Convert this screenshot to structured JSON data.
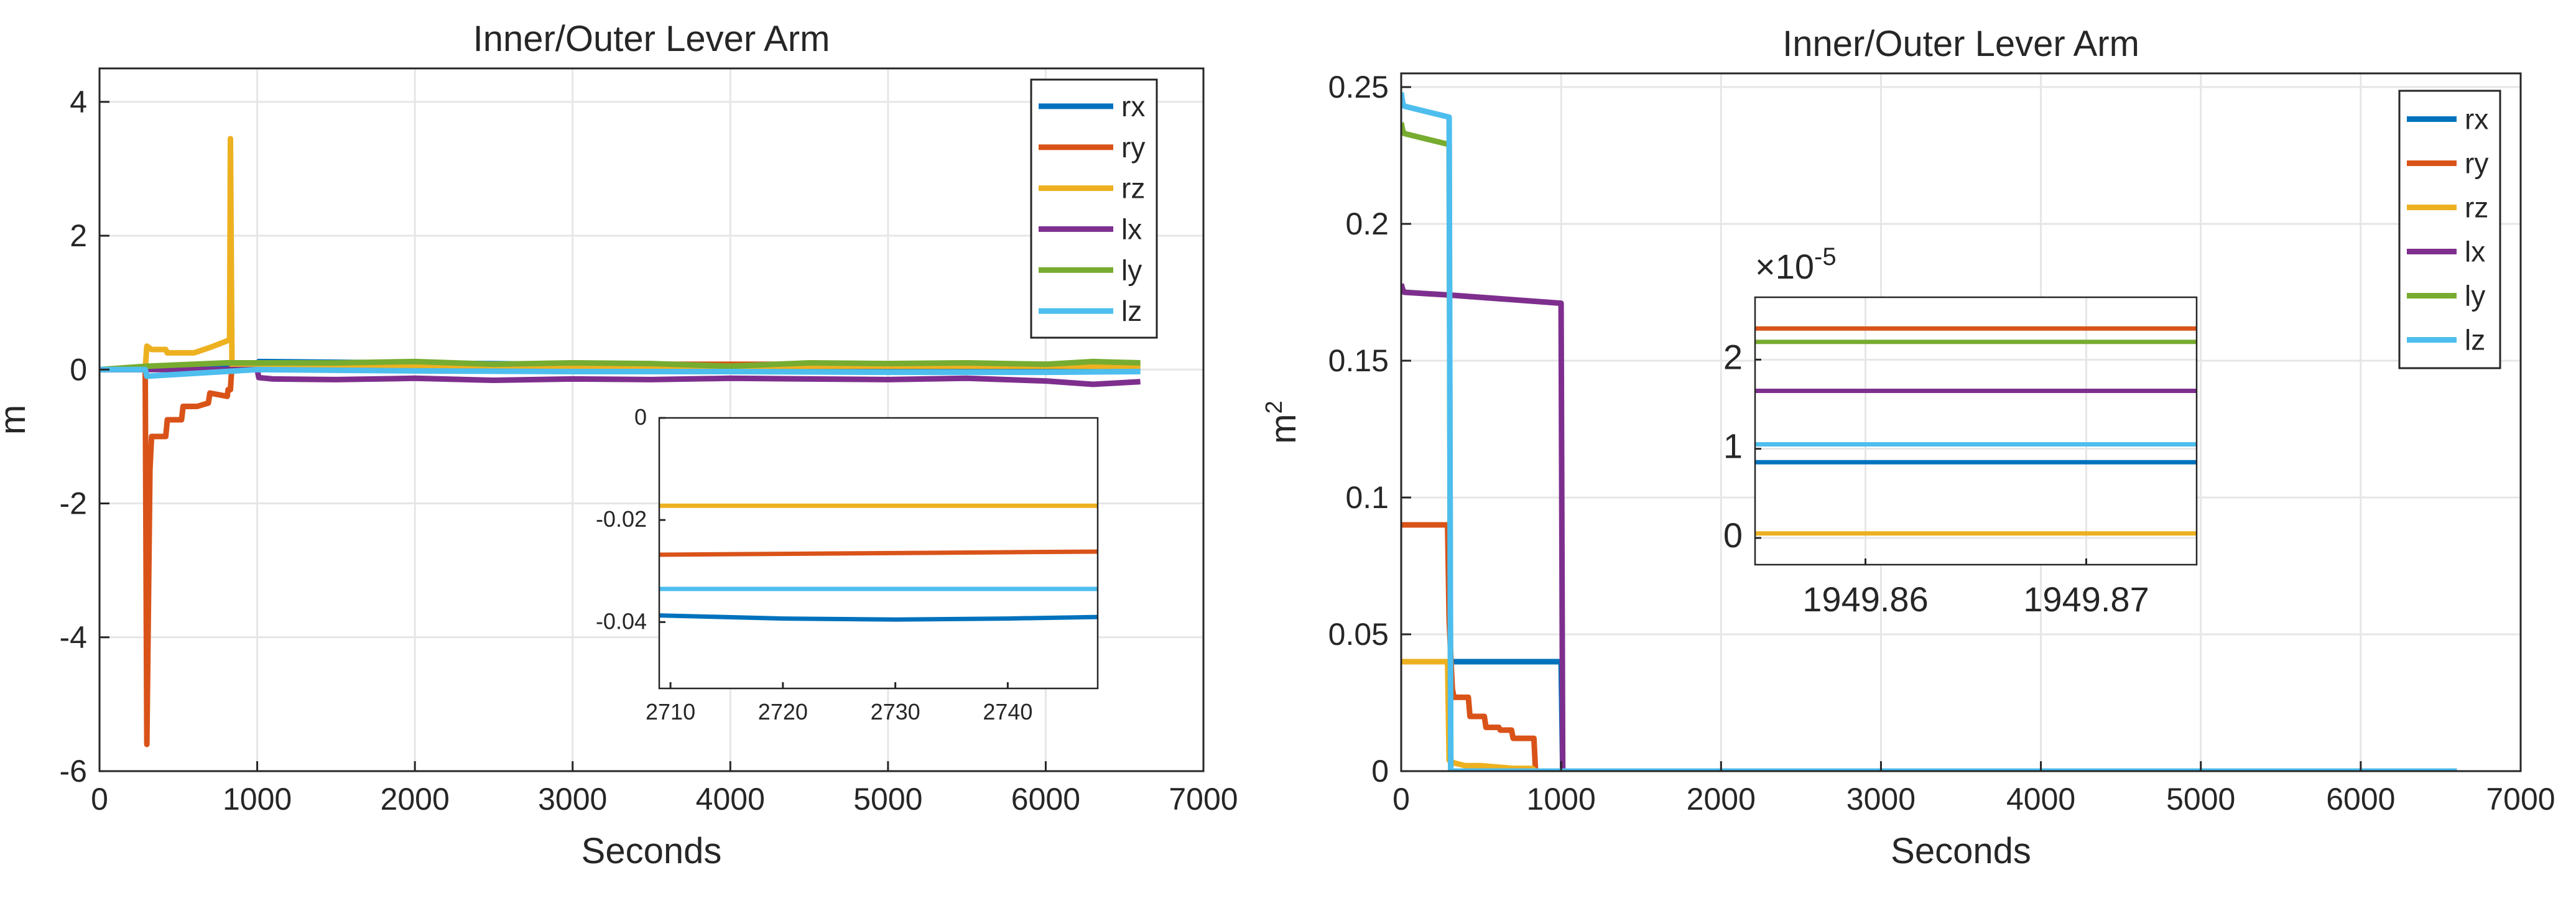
{
  "chart_data": [
    {
      "type": "line",
      "title": "Inner/Outer Lever Arm",
      "xlabel": "Seconds",
      "ylabel": "m",
      "xlim": [
        0,
        7000
      ],
      "ylim": [
        -6,
        4.5
      ],
      "xticks": [
        "0",
        "1000",
        "2000",
        "3000",
        "4000",
        "5000",
        "6000",
        "7000"
      ],
      "xtick_values": [
        0,
        1000,
        2000,
        3000,
        4000,
        5000,
        6000,
        7000
      ],
      "yticks": [
        "-6",
        "-4",
        "-2",
        "0",
        "2",
        "4"
      ],
      "ytick_values": [
        -6,
        -4,
        -2,
        0,
        2,
        4
      ],
      "grid": true,
      "legend_position": "top-right",
      "series": [
        {
          "name": "rx",
          "color": "#0072BD",
          "x": [
            0,
            290,
            300,
            1000,
            1010,
            6600
          ],
          "y": [
            0,
            0,
            0.02,
            0.02,
            0.12,
            0.0
          ]
        },
        {
          "name": "ry",
          "color": "#D95319",
          "x": [
            0,
            290,
            300,
            320,
            330,
            420,
            430,
            520,
            530,
            610,
            620,
            690,
            700,
            810,
            815,
            830,
            840,
            6600
          ],
          "y": [
            0,
            0,
            -5.6,
            -1.5,
            -1.0,
            -1.0,
            -0.75,
            -0.75,
            -0.55,
            -0.55,
            -0.55,
            -0.5,
            -0.35,
            -0.4,
            -0.3,
            -0.3,
            0.08,
            0.08
          ]
        },
        {
          "name": "rz",
          "color": "#EDB120",
          "x": [
            0,
            290,
            300,
            330,
            420,
            430,
            530,
            560,
            600,
            700,
            800,
            825,
            830,
            840,
            845,
            6600
          ],
          "y": [
            0,
            0,
            0.35,
            0.3,
            0.3,
            0.25,
            0.25,
            0.25,
            0.25,
            0.33,
            0.42,
            0.45,
            3.45,
            0.1,
            0.05,
            0.05
          ]
        },
        {
          "name": "lx",
          "color": "#7E2F8E",
          "x": [
            0,
            1000,
            1010,
            1100,
            1500,
            2000,
            2500,
            3000,
            3500,
            4000,
            4500,
            5000,
            5500,
            6000,
            6300,
            6600
          ],
          "y": [
            0,
            0,
            -0.12,
            -0.14,
            -0.15,
            -0.13,
            -0.16,
            -0.14,
            -0.15,
            -0.13,
            -0.14,
            -0.15,
            -0.13,
            -0.17,
            -0.22,
            -0.18
          ]
        },
        {
          "name": "ly",
          "color": "#77AC30",
          "x": [
            0,
            300,
            800,
            1000,
            1500,
            2000,
            2500,
            3000,
            3500,
            4000,
            4500,
            5000,
            5500,
            6000,
            6300,
            6600
          ],
          "y": [
            0,
            0.05,
            0.1,
            0.1,
            0.1,
            0.12,
            0.08,
            0.1,
            0.09,
            0.05,
            0.1,
            0.09,
            0.1,
            0.08,
            0.12,
            0.1
          ]
        },
        {
          "name": "lz",
          "color": "#4DBEEE",
          "x": [
            0,
            290,
            300,
            1000,
            2000,
            3000,
            4000,
            5000,
            6000,
            6600
          ],
          "y": [
            0,
            0,
            -0.1,
            0.0,
            -0.02,
            -0.03,
            -0.03,
            -0.04,
            -0.04,
            -0.03
          ]
        }
      ],
      "inset": {
        "xlim": [
          2709,
          2748
        ],
        "ylim": [
          -0.053,
          0
        ],
        "xticks": [
          "2710",
          "2720",
          "2730",
          "2740"
        ],
        "xtick_values": [
          2710,
          2720,
          2730,
          2740
        ],
        "yticks": [
          "0",
          "-0.02",
          "-0.04"
        ],
        "ytick_values": [
          0,
          -0.02,
          -0.04
        ],
        "series": [
          {
            "name": "rx",
            "color": "#0072BD",
            "x": [
              2709,
              2720,
              2730,
              2740,
              2748
            ],
            "y": [
              -0.0387,
              -0.0393,
              -0.0395,
              -0.0393,
              -0.039
            ]
          },
          {
            "name": "ry",
            "color": "#D95319",
            "x": [
              2709,
              2748
            ],
            "y": [
              -0.0268,
              -0.0262
            ]
          },
          {
            "name": "rz",
            "color": "#EDB120",
            "x": [
              2709,
              2748
            ],
            "y": [
              -0.0172,
              -0.0172
            ]
          },
          {
            "name": "lz",
            "color": "#4DBEEE",
            "x": [
              2709,
              2748
            ],
            "y": [
              -0.0335,
              -0.0335
            ]
          }
        ]
      }
    },
    {
      "type": "line",
      "title": "Inner/Outer Lever Arm",
      "xlabel": "Seconds",
      "ylabel": "m",
      "ylabel_superscript": "2",
      "xlim": [
        0,
        7000
      ],
      "ylim": [
        0,
        0.255
      ],
      "xticks": [
        "0",
        "1000",
        "2000",
        "3000",
        "4000",
        "5000",
        "6000",
        "7000"
      ],
      "xtick_values": [
        0,
        1000,
        2000,
        3000,
        4000,
        5000,
        6000,
        7000
      ],
      "yticks": [
        "0",
        "0.05",
        "0.1",
        "0.15",
        "0.2",
        "0.25"
      ],
      "ytick_values": [
        0,
        0.05,
        0.1,
        0.15,
        0.2,
        0.25
      ],
      "grid": true,
      "legend_position": "top-right",
      "series": [
        {
          "name": "rx",
          "color": "#0072BD",
          "x": [
            300,
            1000,
            1010,
            6600
          ],
          "y": [
            0.04,
            0.04,
            0.0,
            0.0
          ]
        },
        {
          "name": "ry",
          "color": "#D95319",
          "x": [
            0,
            290,
            300,
            320,
            330,
            420,
            430,
            520,
            530,
            610,
            620,
            690,
            700,
            810,
            830,
            840,
            6600
          ],
          "y": [
            0.09,
            0.09,
            0.055,
            0.03,
            0.027,
            0.027,
            0.02,
            0.02,
            0.016,
            0.016,
            0.015,
            0.015,
            0.012,
            0.012,
            0.012,
            0.0,
            0.0
          ]
        },
        {
          "name": "rz",
          "color": "#EDB120",
          "x": [
            0,
            290,
            300,
            330,
            400,
            500,
            700,
            820,
            840,
            6600
          ],
          "y": [
            0.04,
            0.04,
            0.004,
            0.003,
            0.002,
            0.002,
            0.001,
            0.001,
            0.0,
            0.0
          ]
        },
        {
          "name": "lx",
          "color": "#7E2F8E",
          "x": [
            0,
            10,
            20,
            300,
            1000,
            1010,
            6600
          ],
          "y": [
            0.178,
            0.176,
            0.175,
            0.174,
            0.171,
            0.0,
            0.0
          ]
        },
        {
          "name": "ly",
          "color": "#77AC30",
          "x": [
            0,
            10,
            20,
            300,
            310,
            6600
          ],
          "y": [
            0.237,
            0.234,
            0.233,
            0.229,
            0.0,
            0.0
          ]
        },
        {
          "name": "lz",
          "color": "#4DBEEE",
          "x": [
            0,
            10,
            20,
            300,
            310,
            6600
          ],
          "y": [
            0.248,
            0.244,
            0.243,
            0.239,
            0.0,
            0.0
          ]
        }
      ],
      "inset": {
        "xlim": [
          1949.855,
          1949.875
        ],
        "ylim": [
          -0.3,
          2.7
        ],
        "xticks": [
          "1949.86",
          "1949.87"
        ],
        "xtick_values": [
          1949.86,
          1949.87
        ],
        "yticks": [
          "0",
          "1",
          "2"
        ],
        "ytick_values": [
          0,
          1,
          2
        ],
        "exponent_label": "×10",
        "exponent_power": "-5",
        "series": [
          {
            "name": "rx",
            "color": "#0072BD",
            "x": [
              1949.855,
              1949.875
            ],
            "y": [
              0.85,
              0.85
            ]
          },
          {
            "name": "ry",
            "color": "#D95319",
            "x": [
              1949.855,
              1949.875
            ],
            "y": [
              2.35,
              2.35
            ]
          },
          {
            "name": "rz",
            "color": "#EDB120",
            "x": [
              1949.855,
              1949.875
            ],
            "y": [
              0.05,
              0.05
            ]
          },
          {
            "name": "lx",
            "color": "#7E2F8E",
            "x": [
              1949.855,
              1949.875
            ],
            "y": [
              1.65,
              1.65
            ]
          },
          {
            "name": "ly",
            "color": "#77AC30",
            "x": [
              1949.855,
              1949.875
            ],
            "y": [
              2.2,
              2.2
            ]
          },
          {
            "name": "lz",
            "color": "#4DBEEE",
            "x": [
              1949.855,
              1949.875
            ],
            "y": [
              1.05,
              1.05
            ]
          }
        ]
      }
    }
  ]
}
